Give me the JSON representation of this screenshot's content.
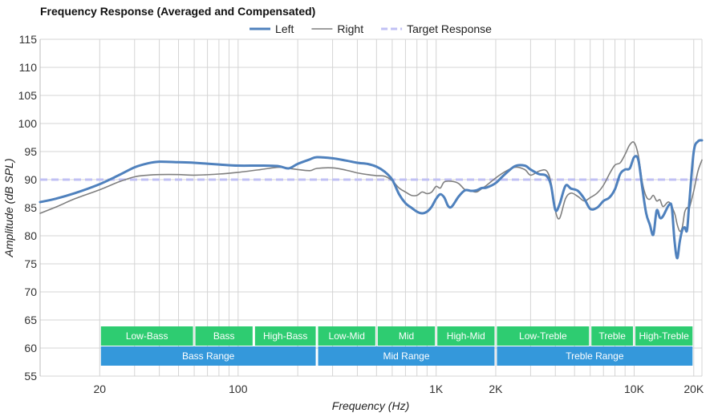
{
  "chart_data": {
    "type": "line",
    "title": "Frequency Response (Averaged and Compensated)",
    "xlabel": "Frequency (Hz)",
    "ylabel": "Amplitude (dB SPL)",
    "x_scale": "log",
    "xlim": [
      10,
      22000
    ],
    "ylim": [
      55,
      115
    ],
    "x_ticks": [
      {
        "value": 20,
        "label": "20"
      },
      {
        "value": 100,
        "label": "100"
      },
      {
        "value": 1000,
        "label": "1K"
      },
      {
        "value": 2000,
        "label": "2K"
      },
      {
        "value": 10000,
        "label": "10K"
      },
      {
        "value": 20000,
        "label": "20K"
      }
    ],
    "y_ticks": [
      55,
      60,
      65,
      70,
      75,
      80,
      85,
      90,
      95,
      100,
      105,
      110,
      115
    ],
    "grid": true,
    "legend_position": "top-center",
    "series": [
      {
        "name": "Left",
        "color": "#4f81bd",
        "style": "solid-thick",
        "points": [
          [
            10,
            86.0
          ],
          [
            12,
            86.6
          ],
          [
            15,
            87.6
          ],
          [
            20,
            89.2
          ],
          [
            25,
            90.8
          ],
          [
            30,
            92.2
          ],
          [
            35,
            92.9
          ],
          [
            40,
            93.2
          ],
          [
            50,
            93.1
          ],
          [
            60,
            93.0
          ],
          [
            80,
            92.7
          ],
          [
            100,
            92.5
          ],
          [
            130,
            92.5
          ],
          [
            160,
            92.4
          ],
          [
            180,
            92.0
          ],
          [
            200,
            92.8
          ],
          [
            230,
            93.6
          ],
          [
            250,
            94.0
          ],
          [
            300,
            93.8
          ],
          [
            350,
            93.4
          ],
          [
            400,
            93.0
          ],
          [
            450,
            92.8
          ],
          [
            500,
            92.3
          ],
          [
            550,
            91.4
          ],
          [
            600,
            90.0
          ],
          [
            650,
            87.4
          ],
          [
            700,
            85.8
          ],
          [
            750,
            85.0
          ],
          [
            800,
            84.3
          ],
          [
            850,
            84.0
          ],
          [
            900,
            84.3
          ],
          [
            950,
            85.2
          ],
          [
            1000,
            86.6
          ],
          [
            1050,
            87.4
          ],
          [
            1100,
            86.8
          ],
          [
            1150,
            85.3
          ],
          [
            1200,
            85.2
          ],
          [
            1300,
            87.0
          ],
          [
            1400,
            88.1
          ],
          [
            1500,
            88.0
          ],
          [
            1600,
            88.1
          ],
          [
            1700,
            88.5
          ],
          [
            1800,
            88.6
          ],
          [
            2000,
            89.4
          ],
          [
            2200,
            90.8
          ],
          [
            2500,
            92.4
          ],
          [
            2800,
            92.5
          ],
          [
            3000,
            91.8
          ],
          [
            3300,
            91.0
          ],
          [
            3600,
            90.7
          ],
          [
            3800,
            89.0
          ],
          [
            4000,
            84.6
          ],
          [
            4200,
            85.6
          ],
          [
            4500,
            88.9
          ],
          [
            4800,
            88.4
          ],
          [
            5200,
            88.0
          ],
          [
            5600,
            86.6
          ],
          [
            6000,
            84.8
          ],
          [
            6500,
            85.0
          ],
          [
            7000,
            86.2
          ],
          [
            7500,
            86.8
          ],
          [
            8000,
            88.3
          ],
          [
            8500,
            91.0
          ],
          [
            9000,
            91.8
          ],
          [
            9500,
            92.0
          ],
          [
            10000,
            94.0
          ],
          [
            10500,
            93.5
          ],
          [
            11000,
            88.5
          ],
          [
            11500,
            84.0
          ],
          [
            12000,
            82.0
          ],
          [
            12500,
            80.2
          ],
          [
            13000,
            84.5
          ],
          [
            13500,
            83.2
          ],
          [
            14000,
            83.5
          ],
          [
            15000,
            85.5
          ],
          [
            15500,
            85.0
          ],
          [
            16000,
            79.0
          ],
          [
            16500,
            76.0
          ],
          [
            17000,
            79.0
          ],
          [
            17500,
            81.0
          ],
          [
            18000,
            81.5
          ],
          [
            18500,
            81.0
          ],
          [
            19000,
            86.0
          ],
          [
            20000,
            95.0
          ],
          [
            21000,
            96.8
          ],
          [
            22000,
            97.0
          ]
        ]
      },
      {
        "name": "Right",
        "color": "#7f7f7f",
        "style": "solid-thin",
        "points": [
          [
            10,
            84.0
          ],
          [
            12,
            85.1
          ],
          [
            15,
            86.6
          ],
          [
            20,
            88.2
          ],
          [
            25,
            89.6
          ],
          [
            30,
            90.5
          ],
          [
            35,
            90.8
          ],
          [
            40,
            90.9
          ],
          [
            50,
            90.9
          ],
          [
            60,
            90.8
          ],
          [
            80,
            91.0
          ],
          [
            100,
            91.3
          ],
          [
            130,
            91.8
          ],
          [
            160,
            92.2
          ],
          [
            180,
            92.0
          ],
          [
            200,
            91.8
          ],
          [
            230,
            91.6
          ],
          [
            250,
            92.0
          ],
          [
            300,
            92.1
          ],
          [
            350,
            91.7
          ],
          [
            400,
            91.2
          ],
          [
            450,
            90.9
          ],
          [
            500,
            90.7
          ],
          [
            550,
            90.6
          ],
          [
            600,
            89.8
          ],
          [
            650,
            88.5
          ],
          [
            700,
            87.8
          ],
          [
            750,
            87.2
          ],
          [
            800,
            87.2
          ],
          [
            850,
            87.8
          ],
          [
            900,
            87.5
          ],
          [
            950,
            87.8
          ],
          [
            1000,
            88.8
          ],
          [
            1050,
            88.5
          ],
          [
            1100,
            89.6
          ],
          [
            1200,
            89.7
          ],
          [
            1300,
            89.3
          ],
          [
            1400,
            88.2
          ],
          [
            1500,
            88.0
          ],
          [
            1600,
            87.8
          ],
          [
            1700,
            88.4
          ],
          [
            1800,
            89.0
          ],
          [
            2000,
            90.3
          ],
          [
            2200,
            91.3
          ],
          [
            2500,
            92.2
          ],
          [
            2800,
            91.8
          ],
          [
            3000,
            90.8
          ],
          [
            3300,
            91.5
          ],
          [
            3600,
            91.6
          ],
          [
            3800,
            89.5
          ],
          [
            4000,
            84.5
          ],
          [
            4200,
            83.1
          ],
          [
            4500,
            86.6
          ],
          [
            4800,
            87.6
          ],
          [
            5200,
            87.0
          ],
          [
            5600,
            86.2
          ],
          [
            6000,
            86.8
          ],
          [
            6500,
            87.6
          ],
          [
            7000,
            89.0
          ],
          [
            7500,
            91.0
          ],
          [
            8000,
            92.6
          ],
          [
            8500,
            93.0
          ],
          [
            9000,
            94.5
          ],
          [
            9500,
            96.2
          ],
          [
            10000,
            96.6
          ],
          [
            10500,
            94.3
          ],
          [
            11000,
            89.5
          ],
          [
            11500,
            87.0
          ],
          [
            12000,
            86.5
          ],
          [
            12500,
            87.2
          ],
          [
            13000,
            86.2
          ],
          [
            13500,
            86.4
          ],
          [
            14000,
            85.2
          ],
          [
            15000,
            86.0
          ],
          [
            16000,
            84.0
          ],
          [
            16500,
            82.0
          ],
          [
            17000,
            80.8
          ],
          [
            17500,
            81.5
          ],
          [
            18000,
            84.2
          ],
          [
            18500,
            85.0
          ],
          [
            19000,
            85.0
          ],
          [
            20000,
            88.0
          ],
          [
            21000,
            91.5
          ],
          [
            22000,
            93.5
          ]
        ]
      },
      {
        "name": "Target Response",
        "color": "#c0c0f4",
        "style": "dashed",
        "points": [
          [
            10,
            90
          ],
          [
            22000,
            90
          ]
        ]
      }
    ],
    "bands": [
      {
        "row": 1,
        "label": "Low-Bass",
        "from": 20,
        "to": 60,
        "color": "#2ecc71"
      },
      {
        "row": 1,
        "label": "Bass",
        "from": 60,
        "to": 120,
        "color": "#2ecc71"
      },
      {
        "row": 1,
        "label": "High-Bass",
        "from": 120,
        "to": 250,
        "color": "#2ecc71"
      },
      {
        "row": 1,
        "label": "Low-Mid",
        "from": 250,
        "to": 500,
        "color": "#2ecc71"
      },
      {
        "row": 1,
        "label": "Mid",
        "from": 500,
        "to": 1000,
        "color": "#2ecc71"
      },
      {
        "row": 1,
        "label": "High-Mid",
        "from": 1000,
        "to": 2000,
        "color": "#2ecc71"
      },
      {
        "row": 1,
        "label": "Low-Treble",
        "from": 2000,
        "to": 6000,
        "color": "#2ecc71"
      },
      {
        "row": 1,
        "label": "Treble",
        "from": 6000,
        "to": 10000,
        "color": "#2ecc71"
      },
      {
        "row": 1,
        "label": "High-Treble",
        "from": 10000,
        "to": 20000,
        "color": "#2ecc71"
      },
      {
        "row": 2,
        "label": "Bass Range",
        "from": 20,
        "to": 250,
        "color": "#3498db"
      },
      {
        "row": 2,
        "label": "Mid Range",
        "from": 250,
        "to": 2000,
        "color": "#3498db"
      },
      {
        "row": 2,
        "label": "Treble Range",
        "from": 2000,
        "to": 20000,
        "color": "#3498db"
      }
    ]
  }
}
